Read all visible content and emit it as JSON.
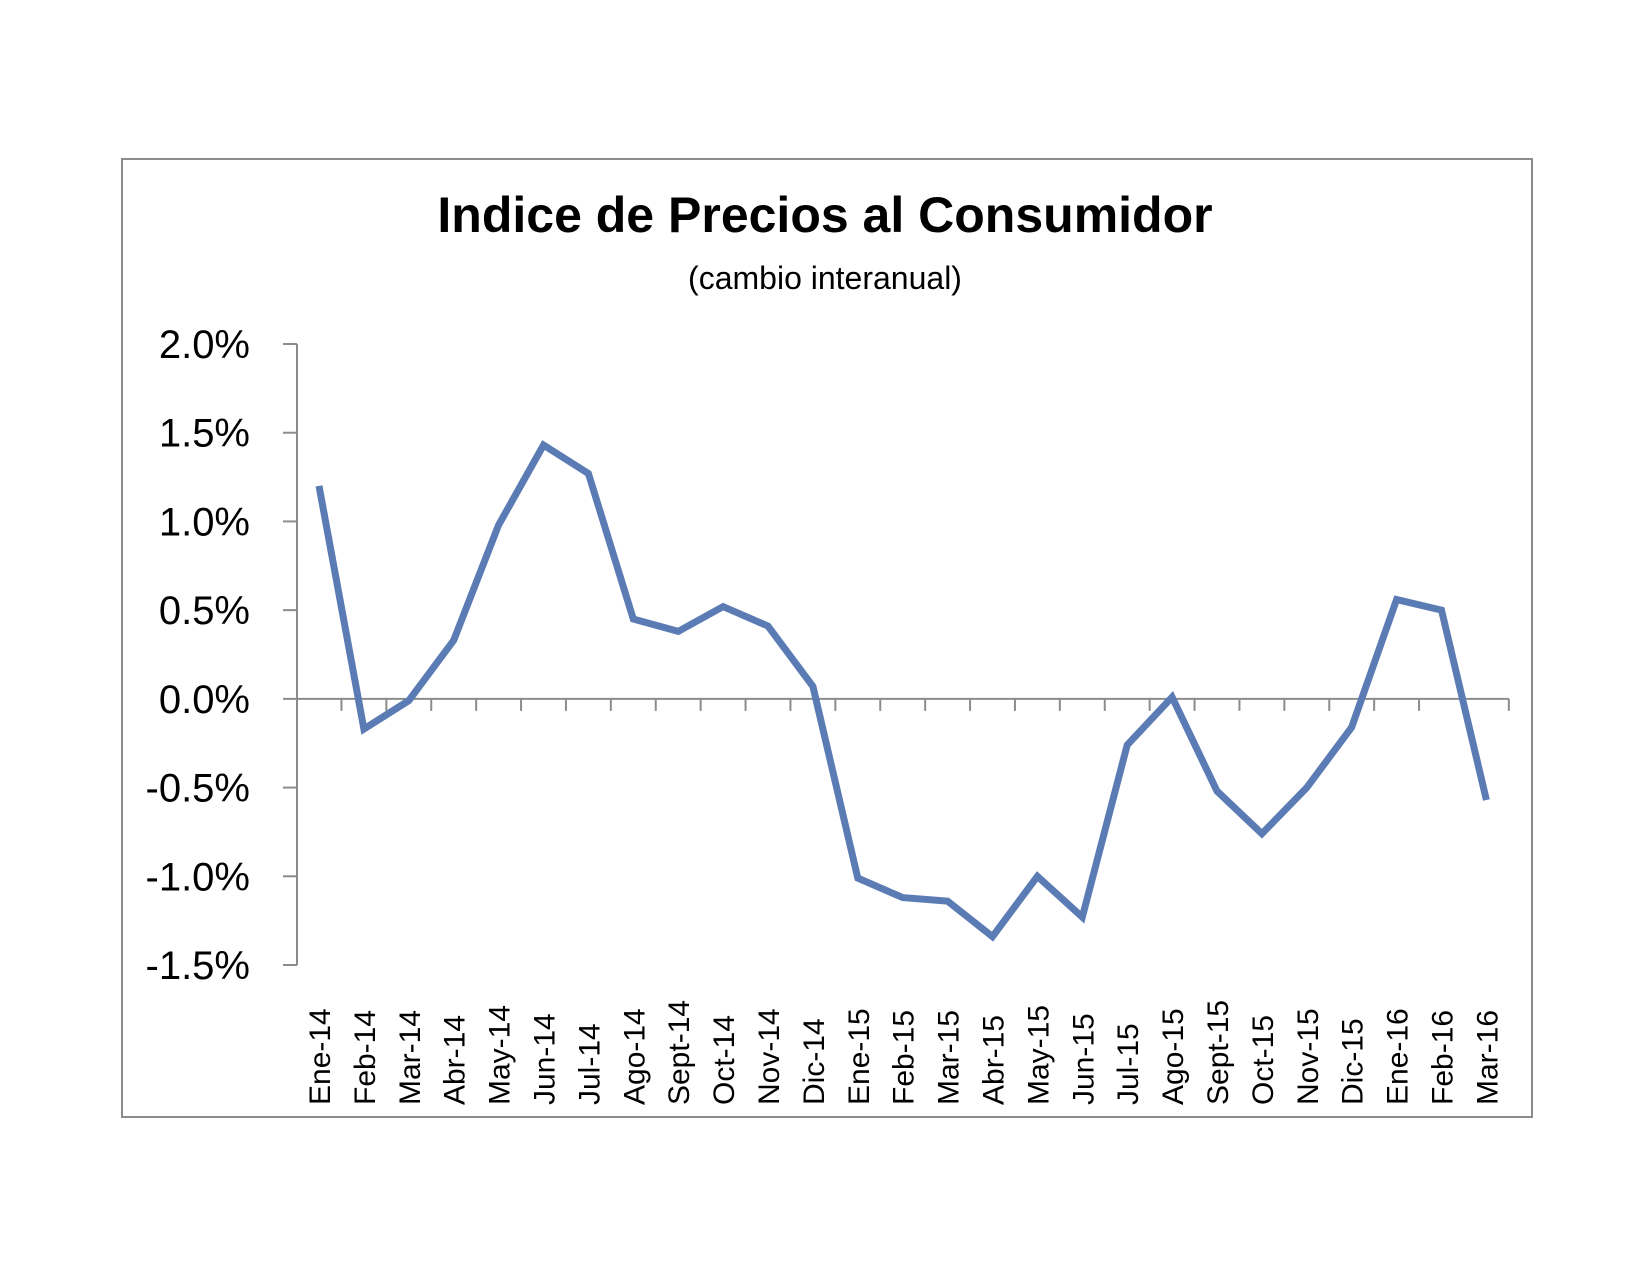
{
  "chart_data": {
    "type": "line",
    "title": "Indice de Precios al Consumidor",
    "subtitle": "(cambio interanual)",
    "xlabel": "",
    "ylabel": "",
    "categories": [
      "Ene-14",
      "Feb-14",
      "Mar-14",
      "Abr-14",
      "May-14",
      "Jun-14",
      "Jul-14",
      "Ago-14",
      "Sept-14",
      "Oct-14",
      "Nov-14",
      "Dic-14",
      "Ene-15",
      "Feb-15",
      "Mar-15",
      "Abr-15",
      "May-15",
      "Jun-15",
      "Jul-15",
      "Ago-15",
      "Sept-15",
      "Oct-15",
      "Nov-15",
      "Dic-15",
      "Ene-16",
      "Feb-16",
      "Mar-16"
    ],
    "series": [
      {
        "name": "",
        "color": "#5b7bb4",
        "values": [
          1.2,
          -0.17,
          -0.01,
          0.33,
          0.98,
          1.43,
          1.27,
          0.45,
          0.38,
          0.52,
          0.41,
          0.07,
          -1.01,
          -1.12,
          -1.14,
          -1.34,
          -1.0,
          -1.23,
          -0.26,
          0.01,
          -0.52,
          -0.76,
          -0.5,
          -0.16,
          0.56,
          0.5,
          -0.57
        ]
      }
    ],
    "ylim": [
      -1.5,
      2.0
    ],
    "yticks": [
      2.0,
      1.5,
      1.0,
      0.5,
      0.0,
      -0.5,
      -1.0,
      -1.5
    ],
    "ytick_labels": [
      "2.0%",
      "1.5%",
      "1.0%",
      "0.5%",
      "0.0%",
      "-0.5%",
      "-1.0%",
      "-1.5%"
    ],
    "grid": false,
    "legend": "none"
  }
}
